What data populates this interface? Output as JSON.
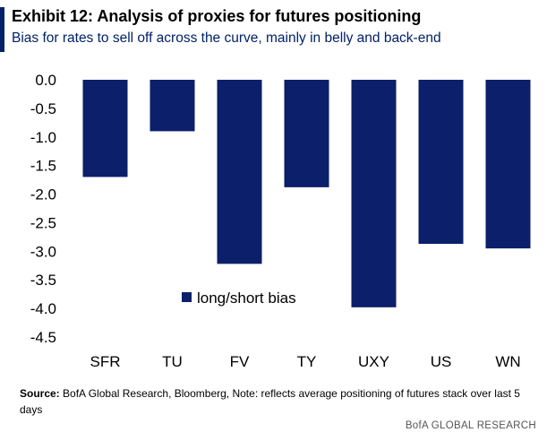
{
  "header": {
    "title": "Exhibit 12: Analysis of proxies for futures positioning",
    "subtitle": "Bias for rates to sell off across the curve, mainly in belly and back-end"
  },
  "footnote": {
    "label": "Source:",
    "text": "BofA Global Research, Bloomberg, Note: reflects average positioning of futures stack over last 5 days"
  },
  "branding": {
    "footer": "BofA GLOBAL RESEARCH"
  },
  "colors": {
    "bar": "#0b1f6a",
    "accent": "#012169"
  },
  "chart_data": {
    "type": "bar",
    "title": "Exhibit 12: Analysis of proxies for futures positioning",
    "subtitle": "Bias for rates to sell off across the curve, mainly in belly and back-end",
    "categories": [
      "SFR",
      "TU",
      "FV",
      "TY",
      "UXY",
      "US",
      "WN"
    ],
    "series": [
      {
        "name": "long/short bias",
        "values": [
          -1.7,
          -0.9,
          -3.22,
          -1.88,
          -3.98,
          -2.87,
          -2.95
        ]
      }
    ],
    "ylim": [
      -4.5,
      0.0
    ],
    "yticks": [
      "0.0",
      "-0.5",
      "-1.0",
      "-1.5",
      "-2.0",
      "-2.5",
      "-3.0",
      "-3.5",
      "-4.0",
      "-4.5"
    ],
    "ytick_values": [
      0,
      -0.5,
      -1.0,
      -1.5,
      -2.0,
      -2.5,
      -3.0,
      -3.5,
      -4.0,
      -4.5
    ],
    "xlabel": "",
    "ylabel": "",
    "grid": false,
    "legend_position": "lower-left inside plot"
  }
}
